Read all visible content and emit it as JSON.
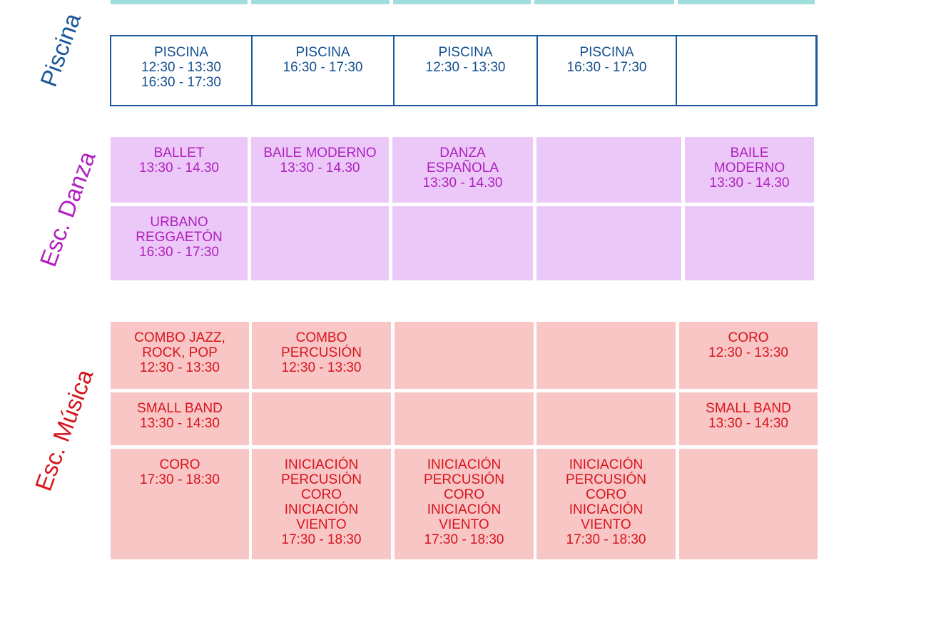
{
  "colors": {
    "teal": "#9fdedd",
    "piscina_text": "#134f8e",
    "piscina_border": "#1a5799",
    "danza_bg": "#ebc8f7",
    "danza_text": "#b01fbf",
    "musica_bg": "#f9c6c6",
    "musica_text": "#d7141c"
  },
  "sections": {
    "piscina": {
      "label": "Piscina",
      "cells": [
        "PISCINA\n12:30 - 13:30\n16:30 - 17:30",
        "PISCINA\n16:30 - 17:30",
        "PISCINA\n12:30 - 13:30",
        "PISCINA\n16:30 - 17:30",
        ""
      ]
    },
    "danza": {
      "label": "Esc. Danza",
      "row1": [
        "BALLET\n13:30 - 14.30",
        "BAILE MODERNO\n13:30 - 14.30",
        "DANZA\nESPAÑOLA\n13:30 - 14.30",
        "",
        "BAILE\nMODERNO\n13:30 - 14.30"
      ],
      "row2": [
        "URBANO\nREGGAETÓN\n16:30 - 17:30",
        "",
        "",
        "",
        ""
      ]
    },
    "musica": {
      "label": "Esc. Música",
      "row1": [
        "COMBO JAZZ,\nROCK, POP\n12:30 - 13:30",
        "COMBO\nPERCUSIÓN\n12:30 - 13:30",
        "",
        "",
        "CORO\n12:30 - 13:30"
      ],
      "row2": [
        "SMALL BAND\n13:30 - 14:30",
        "",
        "",
        "",
        "SMALL BAND\n13:30 - 14:30"
      ],
      "row3": [
        "CORO\n17:30 - 18:30",
        "INICIACIÓN\nPERCUSIÓN\nCORO\nINICIACIÓN\nVIENTO\n17:30 - 18:30",
        "INICIACIÓN\nPERCUSIÓN\nCORO\nINICIACIÓN\nVIENTO\n17:30 - 18:30",
        "INICIACIÓN\nPERCUSIÓN\nCORO\nINICIACIÓN\nVIENTO\n17:30 - 18:30",
        ""
      ]
    }
  }
}
